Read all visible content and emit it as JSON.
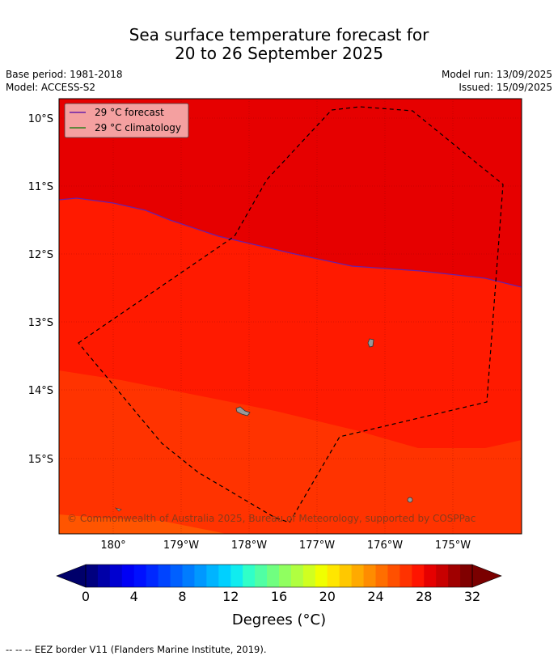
{
  "title": {
    "line1": "Sea surface temperature forecast for",
    "line2": "20 to 26 September 2025"
  },
  "meta": {
    "base_period": "Base period: 1981-2018",
    "model": "Model: ACCESS-S2",
    "model_run": "Model run: 13/09/2025",
    "issued": "Issued: 15/09/2025"
  },
  "legend": {
    "forecast": "29 °C  forecast",
    "climatology": "29 °C  climatology",
    "forecast_color": "#6a1fa8",
    "climatology_color": "#2f7f1f"
  },
  "map": {
    "lat_labels": [
      "10°S",
      "11°S",
      "12°S",
      "13°S",
      "14°S",
      "15°S"
    ],
    "lon_labels": [
      "180°",
      "179°W",
      "178°W",
      "177°W",
      "176°W",
      "175°W"
    ],
    "copyright": "© Commonwealth of Australia 2025, Bureau of Meteorology, supported by COSPPac",
    "zones": [
      {
        "label": "29-30 °C",
        "color": "#e60000"
      },
      {
        "label": "28-29 °C",
        "color": "#ff1a00"
      },
      {
        "label": "27-28 °C",
        "color": "#ff3300"
      },
      {
        "label": "26-27 °C",
        "color": "#ff5500"
      }
    ],
    "border_style": "dashed",
    "land_color": "#999999"
  },
  "colorbar": {
    "ticks": [
      "0",
      "4",
      "8",
      "12",
      "16",
      "20",
      "24",
      "28",
      "32"
    ],
    "label": "Degrees (°C)",
    "colors": [
      "#00007f",
      "#0000a8",
      "#0000d0",
      "#0000f5",
      "#0010ff",
      "#0028ff",
      "#0044ff",
      "#0060ff",
      "#007cff",
      "#0098ff",
      "#00b4ff",
      "#00d0ff",
      "#10ecef",
      "#30ffc8",
      "#50ffa4",
      "#70ff80",
      "#90ff60",
      "#b0ff40",
      "#d0ff20",
      "#f0ff00",
      "#ffe600",
      "#ffc800",
      "#ffaa00",
      "#ff8c00",
      "#ff6e00",
      "#ff5000",
      "#ff3200",
      "#ff1400",
      "#e60000",
      "#c80000",
      "#a00000",
      "#800000"
    ]
  },
  "footer": "--  --  -- EEZ border V11 (Flanders Marine Institute, 2019)."
}
